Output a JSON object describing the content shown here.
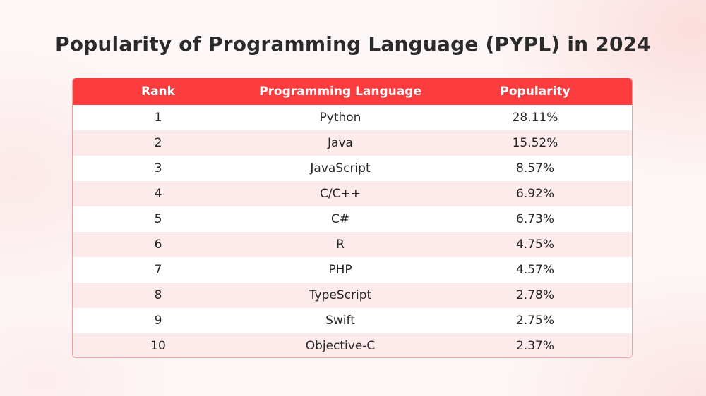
{
  "chart_data": {
    "type": "table",
    "title": "Popularity of Programming Language (PYPL) in 2024",
    "columns": [
      "Rank",
      "Programming Language",
      "Popularity"
    ],
    "rows": [
      {
        "rank": "1",
        "language": "Python",
        "popularity": "28.11%"
      },
      {
        "rank": "2",
        "language": "Java",
        "popularity": "15.52%"
      },
      {
        "rank": "3",
        "language": "JavaScript",
        "popularity": "8.57%"
      },
      {
        "rank": "4",
        "language": "C/C++",
        "popularity": "6.92%"
      },
      {
        "rank": "5",
        "language": "C#",
        "popularity": "6.73%"
      },
      {
        "rank": "6",
        "language": "R",
        "popularity": "4.75%"
      },
      {
        "rank": "7",
        "language": "PHP",
        "popularity": "4.57%"
      },
      {
        "rank": "8",
        "language": "TypeScript",
        "popularity": "2.78%"
      },
      {
        "rank": "9",
        "language": "Swift",
        "popularity": "2.75%"
      },
      {
        "rank": "10",
        "language": "Objective-C",
        "popularity": "2.37%"
      }
    ]
  },
  "colors": {
    "header_bg": "#fa3c3f",
    "row_alt_bg": "#fdeaea",
    "border": "#f4a0a0",
    "title_text": "#2a2a2a"
  }
}
